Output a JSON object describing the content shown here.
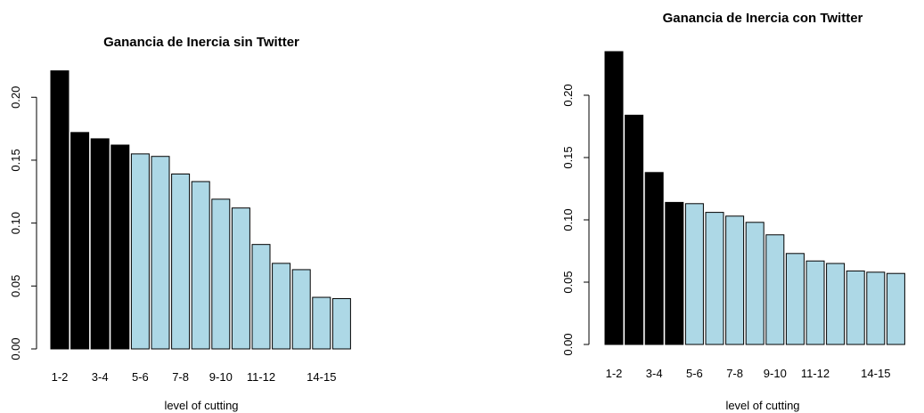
{
  "chart_data": [
    {
      "type": "bar",
      "title": "Ganancia de Inercia sin Twitter",
      "xlabel": "level of cutting",
      "ylabel": "",
      "ylim": [
        0,
        0.22
      ],
      "yticks": [
        "0.00",
        "0.05",
        "0.10",
        "0.15",
        "0.20"
      ],
      "x_tick_labels": [
        "1-2",
        "3-4",
        "5-6",
        "7-8",
        "9-10",
        "11-12",
        "14-15"
      ],
      "values": [
        0.221,
        0.172,
        0.167,
        0.162,
        0.155,
        0.153,
        0.139,
        0.133,
        0.119,
        0.112,
        0.083,
        0.068,
        0.063,
        0.041,
        0.04
      ],
      "bar_colors": [
        "#000000",
        "#000000",
        "#000000",
        "#000000",
        "#add8e6",
        "#add8e6",
        "#add8e6",
        "#add8e6",
        "#add8e6",
        "#add8e6",
        "#add8e6",
        "#add8e6",
        "#add8e6",
        "#add8e6",
        "#add8e6"
      ]
    },
    {
      "type": "bar",
      "title": "Ganancia de Inercia con Twitter",
      "xlabel": "level of cutting",
      "ylabel": "",
      "ylim": [
        0,
        0.235
      ],
      "yticks": [
        "0.00",
        "0.05",
        "0.10",
        "0.15",
        "0.20"
      ],
      "x_tick_labels": [
        "1-2",
        "3-4",
        "5-6",
        "7-8",
        "9-10",
        "11-12",
        "14-15"
      ],
      "values": [
        0.235,
        0.184,
        0.138,
        0.114,
        0.113,
        0.106,
        0.103,
        0.098,
        0.088,
        0.073,
        0.067,
        0.065,
        0.059,
        0.058,
        0.057
      ],
      "bar_colors": [
        "#000000",
        "#000000",
        "#000000",
        "#000000",
        "#add8e6",
        "#add8e6",
        "#add8e6",
        "#add8e6",
        "#add8e6",
        "#add8e6",
        "#add8e6",
        "#add8e6",
        "#add8e6",
        "#add8e6",
        "#add8e6"
      ]
    }
  ]
}
